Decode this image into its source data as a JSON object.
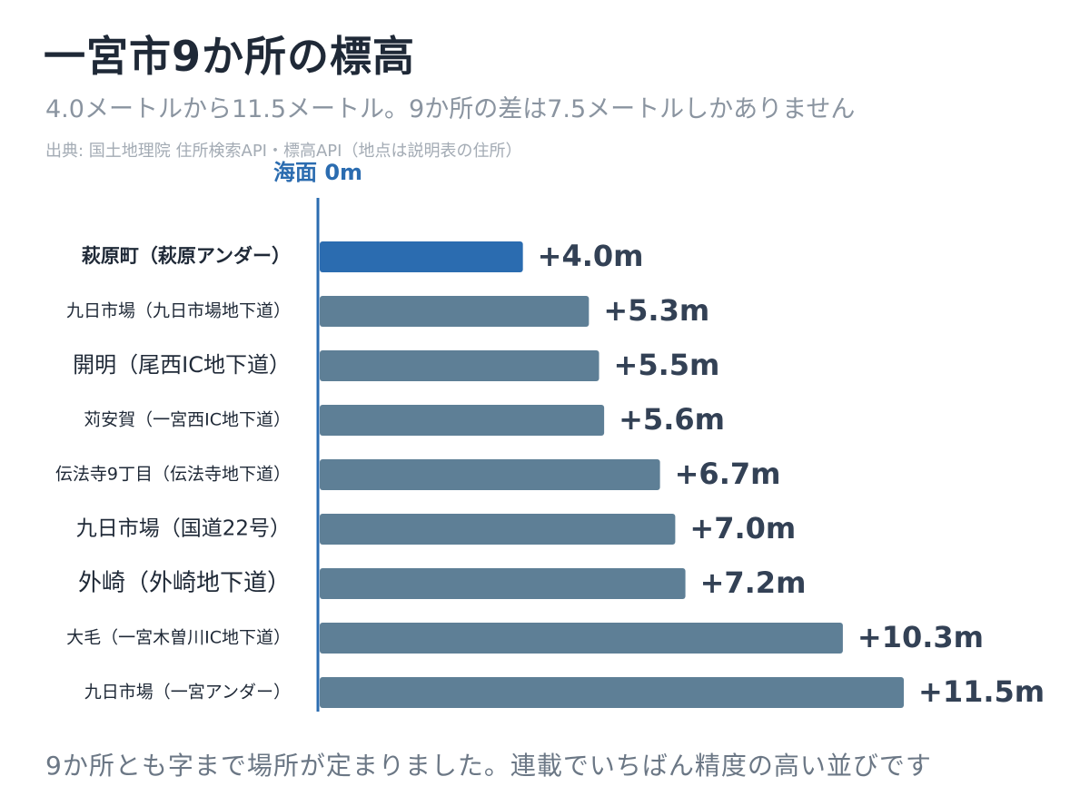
{
  "header": {
    "title": "一宮市9か所の標高",
    "subtitle": "4.0メートルから11.5メートル。9か所の差は7.5メートルしかありません",
    "source": "出典: 国土地理院 住所検索API・標高API（地点は説明表の住所）"
  },
  "chart_data": {
    "type": "bar",
    "orientation": "horizontal",
    "baseline_label": "海面 0m",
    "categories": [
      "萩原町（萩原アンダー）",
      "九日市場（九日市場地下道）",
      "開明（尾西IC地下道）",
      "苅安賀（一宮西IC地下道）",
      "伝法寺9丁目（伝法寺地下道）",
      "九日市場（国道22号）",
      "外崎（外崎地下道）",
      "大毛（一宮木曽川IC地下道）",
      "九日市場（一宮アンダー）"
    ],
    "values": [
      4.0,
      5.3,
      5.5,
      5.6,
      6.7,
      7.0,
      7.2,
      10.3,
      11.5
    ],
    "value_labels": [
      "+4.0m",
      "+5.3m",
      "+5.5m",
      "+5.6m",
      "+6.7m",
      "+7.0m",
      "+7.2m",
      "+10.3m",
      "+11.5m"
    ],
    "highlight_index": 0,
    "unit": "m",
    "xlim": [
      0,
      11.5
    ],
    "colors": {
      "highlight": "#2b6cb0",
      "bar": "#5e7f96",
      "baseline": "#2b6cb0"
    },
    "grid": false,
    "legend": "none"
  },
  "footer": {
    "note": "9か所とも字まで場所が定まりました。連載でいちばん精度の高い並びです"
  }
}
